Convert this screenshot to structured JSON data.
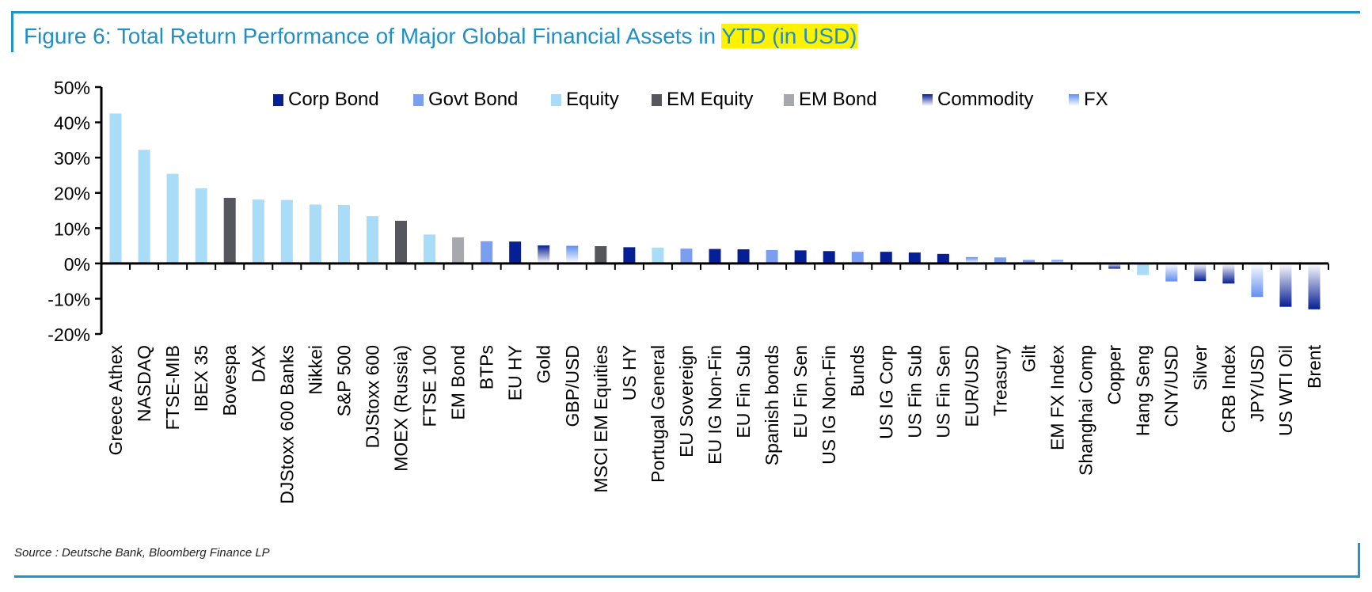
{
  "title": {
    "prefix": "Figure 6: Total Return Performance of Major Global Financial Assets in ",
    "highlight": "YTD (in USD)"
  },
  "source": "Source : Deutsche Bank, Bloomberg Finance LP",
  "colors": {
    "frame": "#1f95c9",
    "title": "#1f8fc7",
    "highlight": "#fff200"
  },
  "chart_data": {
    "type": "bar",
    "title": "Figure 6: Total Return Performance of Major Global Financial Assets in YTD (in USD)",
    "xlabel": "",
    "ylabel": "",
    "ylim": [
      -0.2,
      0.5
    ],
    "yticks": [
      0.5,
      0.4,
      0.3,
      0.2,
      0.1,
      0,
      -0.1,
      -0.2
    ],
    "ytick_labels": [
      "50%",
      "40%",
      "30%",
      "20%",
      "10%",
      "0%",
      "-10%",
      "-20%"
    ],
    "grid": false,
    "legend_position": "top",
    "legend": [
      {
        "name": "Corp Bond",
        "color": "#061f94",
        "style": "solid"
      },
      {
        "name": "Govt Bond",
        "color": "#7b9ef0",
        "style": "solid"
      },
      {
        "name": "Equity",
        "color": "#a9dcf6",
        "style": "solid"
      },
      {
        "name": "EM Equity",
        "color": "#56575c",
        "style": "solid"
      },
      {
        "name": "EM Bond",
        "color": "#a6a8ae",
        "style": "solid"
      },
      {
        "name": "Commodity",
        "color": "#061f94",
        "style": "gradient"
      },
      {
        "name": "FX",
        "color": "#5f8fef",
        "style": "gradient"
      }
    ],
    "categories": [
      "Greece Athex",
      "NASDAQ",
      "FTSE-MIB",
      "IBEX 35",
      "Bovespa",
      "DAX",
      "DJStoxx 600 Banks",
      "Nikkei",
      "S&P 500",
      "DJStoxx 600",
      "MOEX (Russia)",
      "FTSE 100",
      "EM Bond",
      "BTPs",
      "EU HY",
      "Gold",
      "GBP/USD",
      "MSCI EM Equities",
      "US HY",
      "Portugal General",
      "EU Sovereign",
      "EU IG Non-Fin",
      "EU Fin Sub",
      "Spanish bonds",
      "EU Fin Sen",
      "US IG Non-Fin",
      "Bunds",
      "US IG Corp",
      "US Fin Sub",
      "US Fin Sen",
      "EUR/USD",
      "Treasury",
      "Gilt",
      "EM FX Index",
      "Shanghai Comp",
      "Copper",
      "Hang Seng",
      "CNY/USD",
      "Silver",
      "CRB Index",
      "JPY/USD",
      "US WTI Oil",
      "Brent"
    ],
    "values": [
      0.425,
      0.322,
      0.254,
      0.213,
      0.186,
      0.181,
      0.18,
      0.167,
      0.166,
      0.134,
      0.121,
      0.082,
      0.074,
      0.063,
      0.062,
      0.051,
      0.05,
      0.049,
      0.046,
      0.045,
      0.042,
      0.041,
      0.04,
      0.038,
      0.037,
      0.035,
      0.033,
      0.033,
      0.031,
      0.027,
      0.018,
      0.017,
      0.01,
      0.01,
      0.0,
      -0.015,
      -0.033,
      -0.051,
      -0.05,
      -0.057,
      -0.095,
      -0.123,
      -0.13
    ],
    "asset_class": [
      "Equity",
      "Equity",
      "Equity",
      "Equity",
      "EM Equity",
      "Equity",
      "Equity",
      "Equity",
      "Equity",
      "Equity",
      "EM Equity",
      "Equity",
      "EM Bond",
      "Govt Bond",
      "Corp Bond",
      "Commodity",
      "FX",
      "EM Equity",
      "Corp Bond",
      "Equity",
      "Govt Bond",
      "Corp Bond",
      "Corp Bond",
      "Govt Bond",
      "Corp Bond",
      "Corp Bond",
      "Govt Bond",
      "Corp Bond",
      "Corp Bond",
      "Corp Bond",
      "FX",
      "Govt Bond",
      "Govt Bond",
      "FX",
      "EM Equity",
      "Commodity",
      "Equity",
      "FX",
      "Commodity",
      "Commodity",
      "FX",
      "Commodity",
      "Commodity"
    ]
  }
}
